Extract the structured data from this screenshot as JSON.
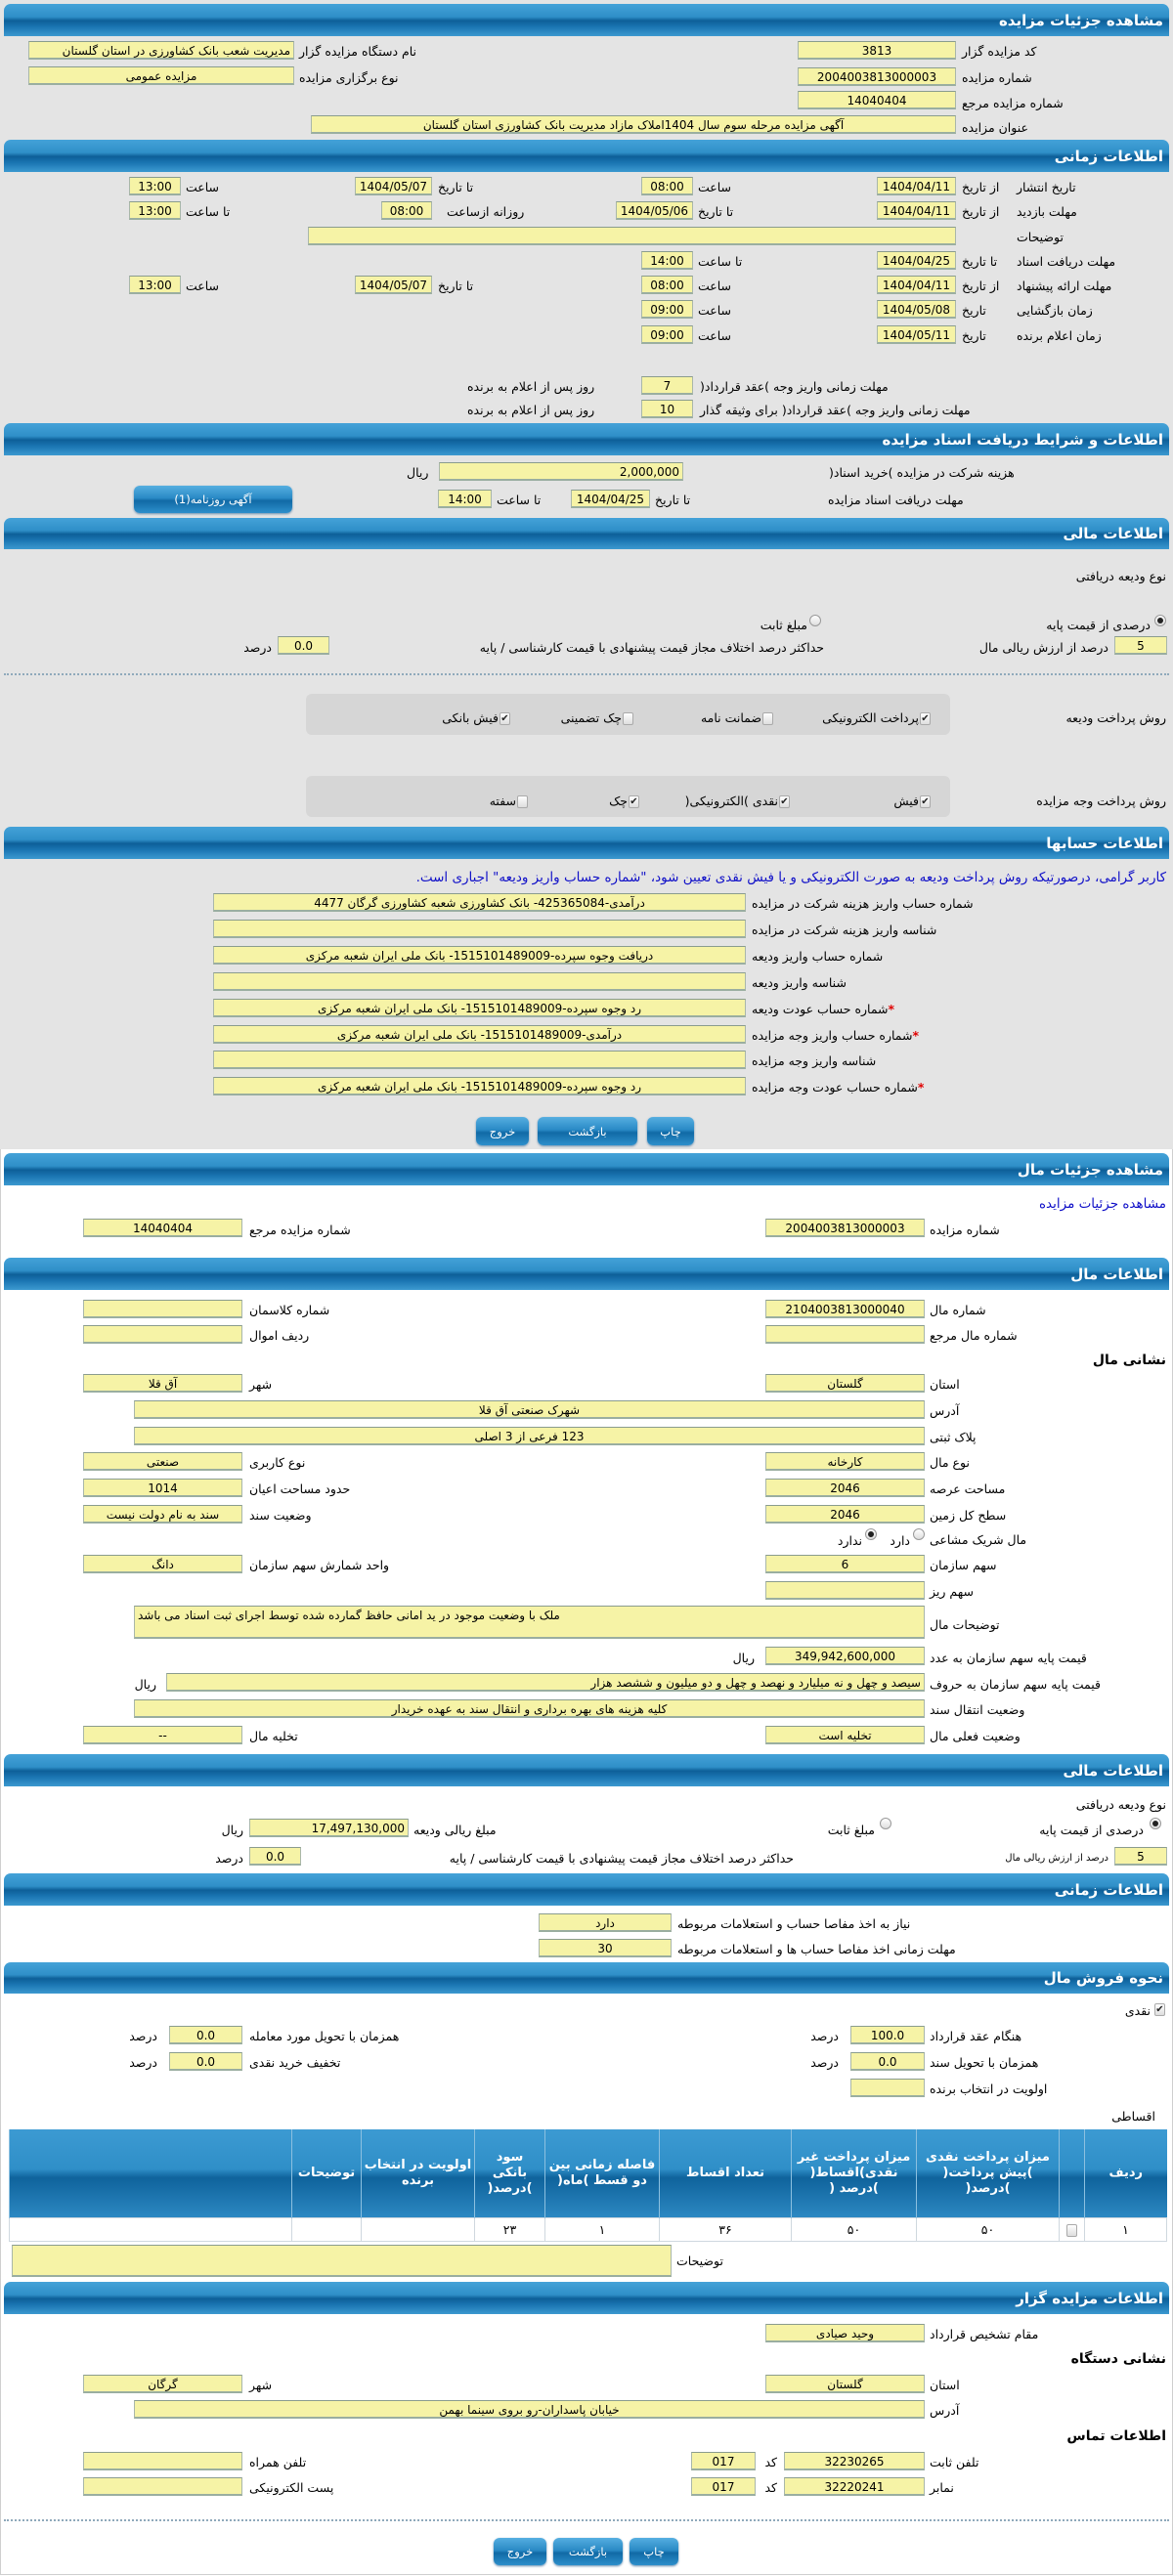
{
  "auction": {
    "title": "مشاهده جزئیات مزایده",
    "organizer_code_label": "کد مزایده گزار",
    "organizer_code": "3813",
    "organizer_name_label": "نام دستگاه مزایده گزار",
    "organizer_name": "مدیریت شعب بانک کشاورزی در استان گلستان",
    "auction_number_label": "شماره مزایده",
    "auction_number": "2004003813000003",
    "holding_type_label": "نوع برگزاری مزایده",
    "holding_type": "مزایده عمومی",
    "reference_number_label": "شماره مزایده مرجع",
    "reference_number": "14040404",
    "auction_title_label": "عنوان مزایده",
    "auction_title": "آگهی مزایده مرحله سوم سال 1404املاک مازاد مدیریت بانک کشاورزی استان گلستان"
  },
  "timing": {
    "title": "اطلاعات زمانی",
    "from_date": "از تاریخ",
    "to_date": "تا تاریخ",
    "date": "تاریخ",
    "hour": "ساعت",
    "to_hour": "تا ساعت",
    "daily_from_hour": "روزانه ازساعت",
    "publish": {
      "label": "تاریخ انتشار",
      "from_date": "1404/04/11",
      "from_time": "08:00",
      "to_date": "1404/05/07",
      "to_time": "13:00"
    },
    "visit": {
      "label": "مهلت بازدید",
      "from_date": "1404/04/11",
      "to_date": "1404/05/06",
      "from_time": "08:00",
      "to_time": "13:00"
    },
    "description_label": "توضیحات",
    "description": "",
    "documents": {
      "label": "مهلت دریافت اسناد",
      "to_date": "1404/04/25",
      "to_time": "14:00"
    },
    "offer": {
      "label": "مهلت ارائه پیشنهاد",
      "from_date": "1404/04/11",
      "from_time": "08:00",
      "to_date": "1404/05/07",
      "to_time": "13:00"
    },
    "opening": {
      "label": "زمان بازگشایی",
      "date": "1404/05/08",
      "time": "09:00"
    },
    "winner": {
      "label": "زمان اعلام برنده",
      "date": "1404/05/11",
      "time": "09:00"
    },
    "payment_deadline": {
      "label": "مهلت زمانی واریز وجه )عقد قرارداد(",
      "value": "7",
      "suffix": "روز پس از اعلام به برنده"
    },
    "collateral_deadline": {
      "label": "مهلت زمانی واریز وجه )عقد قرارداد( برای وثیقه گذار",
      "value": "10",
      "suffix": "روز پس از اعلام به برنده"
    }
  },
  "documents": {
    "title": "اطلاعات و شرایط دریافت اسناد مزایده",
    "fee_label": "هزینه شرکت در مزایده )خرید اسناد(",
    "fee": "2,000,000",
    "currency": "ریال",
    "deadline_label": "مهلت دریافت اسناد مزایده",
    "to_date_label": "تا تاریخ",
    "to_date": "1404/04/25",
    "to_time_label": "تا ساعت",
    "to_time": "14:00",
    "newspaper_button": "آگهی روزنامه(1)"
  },
  "financial": {
    "title": "اطلاعات مالی",
    "deposit_type_label": "نوع ودیعه دریافتی",
    "percent_option": "درصدی از قیمت پایه",
    "fixed_option": "مبلغ ثابت",
    "deposit_type": "percent",
    "deposit_percent": "5",
    "deposit_percent_suffix": "درصد از ارزش ریالی مال",
    "max_diff_label": "حداکثر درصد اختلاف مجاز قیمت پیشنهادی با قیمت کارشناسی / پایه",
    "max_diff": "0.0",
    "percent_unit": "درصد",
    "deposit_methods_label": "روش پرداخت ودیعه",
    "deposit_methods": [
      {
        "label": "پرداخت الکترونیکی",
        "checked": true
      },
      {
        "label": "ضمانت نامه",
        "checked": false
      },
      {
        "label": "چک تضمینی",
        "checked": false
      },
      {
        "label": "فیش بانکی",
        "checked": true
      }
    ],
    "payment_methods_label": "روش پرداخت وجه مزایده",
    "payment_methods": [
      {
        "label": "فیش",
        "checked": true
      },
      {
        "label": "نقدی )الکترونیکی(",
        "checked": true
      },
      {
        "label": "چک",
        "checked": true
      },
      {
        "label": "سفته",
        "checked": false
      }
    ]
  },
  "accounts": {
    "title": "اطلاعات حسابها",
    "notice": "کاربر گرامی، درصورتیکه روش پرداخت ودیعه به صورت الکترونیکی و یا فیش نقدی تعیین شود، \"شماره حساب واریز ودیعه\" اجباری است.",
    "rows": [
      {
        "label": "شماره حساب واریز هزینه شرکت در مزایده",
        "value": "درآمدی-425365084- بانک کشاورزی شعبه کشاورزی گرگان 4477",
        "required": false
      },
      {
        "label": "شناسه واریز هزینه شرکت در مزایده",
        "value": "",
        "required": false
      },
      {
        "label": "شماره حساب واریز ودیعه",
        "value": "دریافت وجوه سپرده-1515101489009- بانک ملی ایران شعبه مرکزی",
        "required": false
      },
      {
        "label": "شناسه واریز ودیعه",
        "value": "",
        "required": false
      },
      {
        "label": "شماره حساب عودت ودیعه",
        "value": "رد وجوه سپرده-1515101489009- بانک ملی ایران شعبه مرکزی",
        "required": true
      },
      {
        "label": "شماره حساب واریز وجه مزایده",
        "value": "درآمدی-1515101489009- بانک ملی ایران شعبه مرکزی",
        "required": true
      },
      {
        "label": "شناسه واریز وجه مزایده",
        "value": "",
        "required": false
      },
      {
        "label": "شماره حساب عودت وجه مزایده",
        "value": "رد وجوه سپرده-1515101489009- بانک ملی ایران شعبه مرکزی",
        "required": true
      }
    ],
    "required_mark": "*"
  },
  "actions": {
    "print": "چاپ",
    "back": "بازگشت",
    "exit": "خروج"
  },
  "item_header": {
    "title": "مشاهده جزئیات مال",
    "link": "مشاهده جزئیات مزایده",
    "auction_number_label": "شماره مزایده",
    "auction_number": "2004003813000003",
    "reference_number_label": "شماره مزایده مرجع",
    "reference_number": "14040404"
  },
  "item": {
    "title": "اطلاعات مال",
    "item_number_label": "شماره مال",
    "item_number": "2104003813000040",
    "classman_label": "شماره کلاسمان",
    "classman": "",
    "ref_item_label": "شماره مال مرجع",
    "ref_item": "",
    "property_row_label": "ردیف اموال",
    "property_row": "",
    "address_heading": "نشانی مال",
    "province_label": "استان",
    "province": "گلستان",
    "city_label": "شهر",
    "city": "آق قلا",
    "address_label": "آدرس",
    "address": "شهرک صنعتی آق قلا",
    "plate_label": "پلاک ثبتی",
    "plate": "123 فرعی از 3 اصلی",
    "type_label": "نوع مال",
    "type": "کارخانه",
    "usage_label": "نوع کاربری",
    "usage": "صنعتی",
    "land_area_label": "مساحت عرصه",
    "land_area": "2046",
    "building_area_label": "حدود مساحت اعیان",
    "building_area": "1014",
    "total_area_label": "سطح کل زمین",
    "total_area": "2046",
    "deed_status_label": "وضعیت سند",
    "deed_status": "سند به نام دولت نیست",
    "shared_label": "مال شریک مشاعی",
    "shared_yes": "دارد",
    "shared_no": "ندارد",
    "shared": "no",
    "org_share_label": "سهم سازمان",
    "org_share": "6",
    "share_unit_label": "واحد شمارش سهم سازمان",
    "share_unit": "دانگ",
    "sub_share_label": "سهم ریز",
    "sub_share": "",
    "description_label": "توضیحات مال",
    "description": "ملک با وضعیت موجود در ید امانی حافظ گمارده شده توسط اجرای ثبت اسناد می باشد",
    "base_price_label": "قیمت پایه سهم سازمان به عدد",
    "base_price": "349,942,600,000",
    "base_price_words_label": "قیمت پایه سهم سازمان به حروف",
    "base_price_words": "سیصد و چهل و نه میلیارد و نهصد و چهل و دو میلیون و ششصد هزار",
    "currency": "ریال",
    "transfer_label": "وضعیت انتقال سند",
    "transfer": "کلیه هزینه های بهره برداری و انتقال سند به عهده خریدار",
    "current_status_label": "وضعیت فعلی مال",
    "current_status": "تخلیه است",
    "evacuation_label": "تخلیه مال",
    "evacuation": "--"
  },
  "item_financial": {
    "title": "اطلاعات مالی",
    "deposit_type_label": "نوع ودیعه دریافتی",
    "percent_option": "درصدی از قیمت پایه",
    "fixed_option": "مبلغ ثابت",
    "deposit_type": "percent",
    "deposit_amount_label": "مبلغ ریالی ودیعه",
    "deposit_amount": "17,497,130,000",
    "currency": "ریال",
    "deposit_percent": "5",
    "deposit_percent_suffix": "درصد از ارزش ریالی مال",
    "max_diff_label": "حداکثر درصد اختلاف مجاز قیمت پیشنهادی با قیمت کارشناسی / پایه",
    "max_diff": "0.0",
    "percent_unit": "درصد"
  },
  "item_timing": {
    "title": "اطلاعات زمانی",
    "clearance_label": "نیاز به اخذ مفاصا حساب و استعلامات مربوطه",
    "clearance": "دارد",
    "clearance_deadline_label": "مهلت زمانی اخذ مفاصا حساب ها و استعلامات مربوطه",
    "clearance_deadline": "30"
  },
  "sale": {
    "title": "نحوه فروش مال",
    "cash_label": "نقدی",
    "cash_checked": true,
    "percent_unit": "درصد",
    "on_contract_label": "هنگام عقد قرارداد",
    "on_contract": "100.0",
    "on_delivery_label": "همزمان با تحویل مورد معامله",
    "on_delivery": "0.0",
    "on_deed_label": "همزمان با تحویل سند",
    "on_deed": "0.0",
    "cash_discount_label": "تخفیف خرید نقدی",
    "cash_discount": "0.0",
    "priority_label": "اولویت در انتخاب برنده",
    "priority": "",
    "installment_label": "اقساطی",
    "table": {
      "columns": [
        "ردیف",
        "",
        "میزان پرداخت نقدی )پیش پرداخت( )درصد(",
        "میزان پرداخت غیر نقدی)اقساط( )درصد (",
        "تعداد اقساط",
        "فاصله زمانی بین دو قسط )ماه(",
        "سود بانکی )درصد(",
        "اولویت در انتخاب برنده",
        "توضیحات",
        ""
      ],
      "rows": [
        [
          "۱",
          "",
          "۵۰",
          "۵۰",
          "۳۶",
          "۱",
          "۲۳",
          "",
          "",
          ""
        ]
      ]
    },
    "notes_label": "توضیحات",
    "notes": ""
  },
  "organizer": {
    "title": "اطلاعات مزایده گزار",
    "authority_label": "مقام تشخیص قرارداد",
    "authority": "وحید صیادی",
    "address_heading": "نشانی دستگاه",
    "province_label": "استان",
    "province": "گلستان",
    "city_label": "شهر",
    "city": "گرگان",
    "address_label": "آدرس",
    "address": "خیابان پاسداران-رو بروی سینما بهمن",
    "contact_heading": "اطلاعات تماس",
    "phone_label": "تلفن ثابت",
    "phone": "32230265",
    "code_label": "کد",
    "phone_code": "017",
    "mobile_label": "تلفن همراه",
    "mobile": "",
    "fax_label": "نمابر",
    "fax": "32220241",
    "fax_code": "017",
    "email_label": "پست الکترونیکی",
    "email": ""
  },
  "colors": {
    "header": "#1b76b3",
    "field": "#f6f3a6",
    "panel": "#e4e4e4",
    "notice": "#1010c8",
    "required": "#e00000"
  }
}
